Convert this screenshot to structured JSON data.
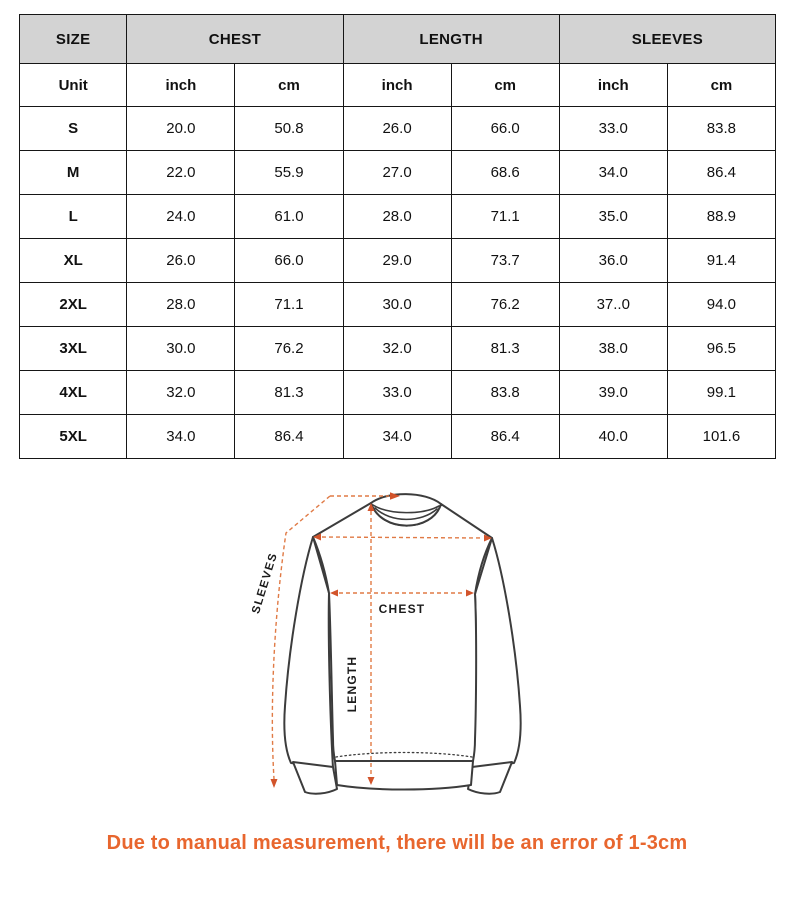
{
  "table": {
    "headers": {
      "size": "SIZE",
      "chest": "CHEST",
      "length": "LENGTH",
      "sleeves": "SLEEVES"
    },
    "unit_row": {
      "label": "Unit",
      "cols": [
        "inch",
        "cm",
        "inch",
        "cm",
        "inch",
        "cm"
      ]
    },
    "rows": [
      {
        "size": "S",
        "values": [
          "20.0",
          "50.8",
          "26.0",
          "66.0",
          "33.0",
          "83.8"
        ]
      },
      {
        "size": "M",
        "values": [
          "22.0",
          "55.9",
          "27.0",
          "68.6",
          "34.0",
          "86.4"
        ]
      },
      {
        "size": "L",
        "values": [
          "24.0",
          "61.0",
          "28.0",
          "71.1",
          "35.0",
          "88.9"
        ]
      },
      {
        "size": "XL",
        "values": [
          "26.0",
          "66.0",
          "29.0",
          "73.7",
          "36.0",
          "91.4"
        ]
      },
      {
        "size": "2XL",
        "values": [
          "28.0",
          "71.1",
          "30.0",
          "76.2",
          "37..0",
          "94.0"
        ]
      },
      {
        "size": "3XL",
        "values": [
          "30.0",
          "76.2",
          "32.0",
          "81.3",
          "38.0",
          "96.5"
        ]
      },
      {
        "size": "4XL",
        "values": [
          "32.0",
          "81.3",
          "33.0",
          "83.8",
          "39.0",
          "99.1"
        ]
      },
      {
        "size": "5XL",
        "values": [
          "34.0",
          "86.4",
          "34.0",
          "86.4",
          "40.0",
          "101.6"
        ]
      }
    ]
  },
  "diagram": {
    "labels": {
      "sleeves": "SLEEVES",
      "chest": "CHEST",
      "length": "LENGTH"
    }
  },
  "footer": {
    "note": "Due to manual measurement, there will be an error of 1-3cm"
  },
  "colors": {
    "header_gray": "#d3d3d3",
    "outline_gray": "#3c3c3c",
    "accent_orange": "#e07a45",
    "arrow_orange": "#d2542b",
    "note_orange": "#e8662e"
  }
}
